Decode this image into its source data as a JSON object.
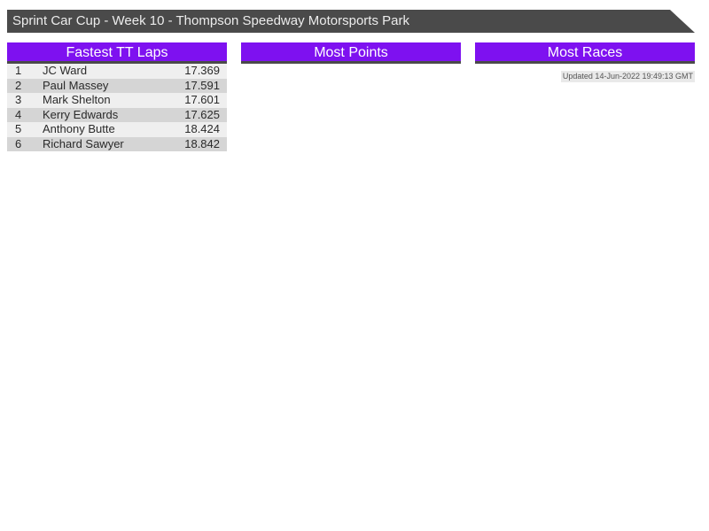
{
  "banner": {
    "title": "Sprint Car Cup - Week 10 - Thompson Speedway Motorsports Park"
  },
  "updated_label": "Updated 14-Jun-2022 19:49:13 GMT",
  "colors": {
    "banner_bg": "#4a4a4a",
    "accent_purple": "#7e11f0",
    "row_light": "#efefef",
    "row_dark": "#d5d5d5",
    "header_text": "#ffffff"
  },
  "sections": [
    {
      "title": "Fastest TT Laps",
      "rows": [
        {
          "rank": "1",
          "name": "JC Ward",
          "value": "17.369"
        },
        {
          "rank": "2",
          "name": "Paul Massey",
          "value": "17.591"
        },
        {
          "rank": "3",
          "name": "Mark Shelton",
          "value": "17.601"
        },
        {
          "rank": "4",
          "name": "Kerry Edwards",
          "value": "17.625"
        },
        {
          "rank": "5",
          "name": "Anthony Butte",
          "value": "18.424"
        },
        {
          "rank": "6",
          "name": "Richard Sawyer",
          "value": "18.842"
        }
      ]
    },
    {
      "title": "Most Points",
      "rows": []
    },
    {
      "title": "Most Races",
      "rows": []
    }
  ]
}
